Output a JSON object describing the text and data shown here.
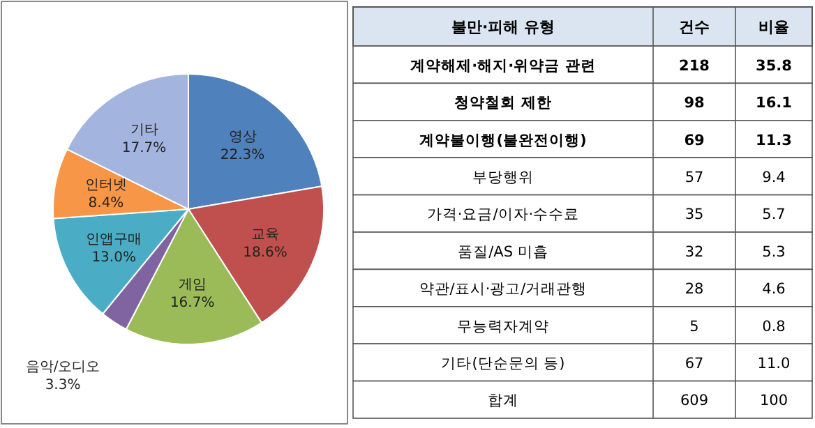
{
  "chart_data": [
    {
      "type": "pie",
      "categories": [
        "영상",
        "교육",
        "게임",
        "음악/오디오",
        "인앱구매",
        "인터넷",
        "기타"
      ],
      "values": [
        22.3,
        18.6,
        16.7,
        3.3,
        13.0,
        8.4,
        17.7
      ],
      "colors": [
        "#4f81bd",
        "#c0504d",
        "#9bbb59",
        "#8064a2",
        "#4bacc6",
        "#f79646",
        "#a3b5de"
      ],
      "value_labels": [
        "22.3%",
        "18.6%",
        "16.7%",
        "3.3%",
        "13.0%",
        "8.4%",
        "17.7%"
      ]
    },
    {
      "type": "other",
      "data_labels": true,
      "ylabel": "불만·피해 유형",
      "categories": [
        "계약해제·해지·위약금 관련",
        "청약철회 제한",
        "계약불이행(불완전이행)",
        "부당행위",
        "가격·요금/이자·수수료",
        "품질/AS 미흡",
        "약관/표시·광고/거래관행",
        "무능력자계약",
        "기타(단순문의 등)",
        "합계"
      ],
      "series": [
        {
          "name": "건수",
          "values": [
            218,
            98,
            69,
            57,
            35,
            32,
            28,
            5,
            67,
            609
          ]
        },
        {
          "name": "비율",
          "values": [
            35.8,
            16.1,
            11.3,
            9.4,
            5.7,
            5.3,
            4.6,
            0.8,
            11.0,
            100
          ],
          "value_labels": [
            "35.8",
            "16.1",
            "11.3",
            "9.4",
            "5.7",
            "5.3",
            "4.6",
            "0.8",
            "11.0",
            "100"
          ]
        }
      ]
    }
  ]
}
